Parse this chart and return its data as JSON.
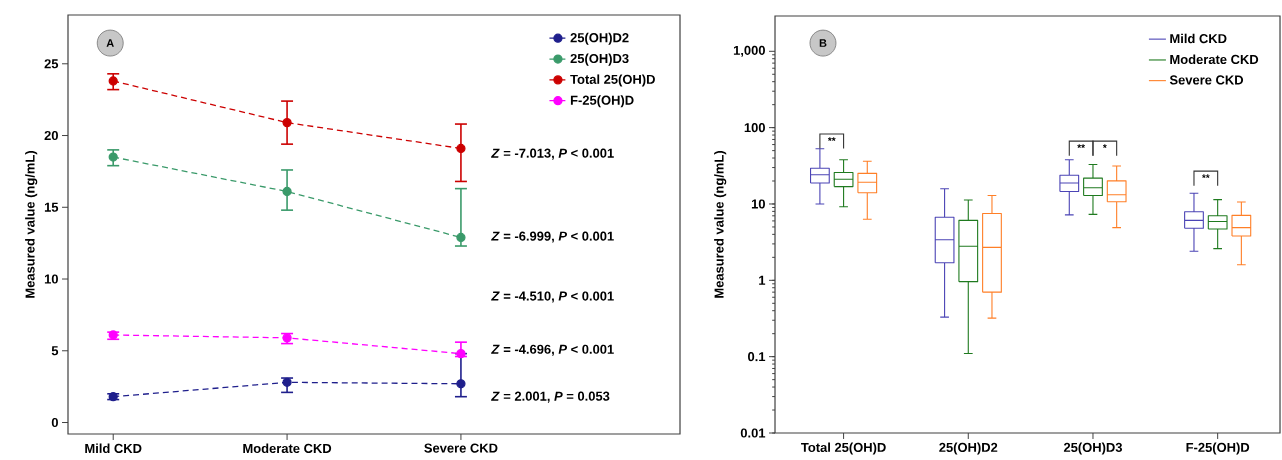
{
  "chart_data": [
    {
      "type": "line",
      "ylabel": "Measured value (ng/mL)",
      "categories": [
        "Mild CKD",
        "Moderate CKD",
        "Severe CKD"
      ],
      "ylim": [
        -0.8,
        28.4
      ],
      "yticks": [
        0,
        5,
        10,
        15,
        20,
        25
      ],
      "legend": "top right",
      "marker": "circle",
      "line_style": "dashed",
      "series": [
        {
          "name": "25(OH)D2",
          "color": "#1f1f8c",
          "values": [
            1.8,
            2.8,
            2.7
          ],
          "errors": [
            [
              1.6,
              2.0
            ],
            [
              2.1,
              3.1
            ],
            [
              1.8,
              4.8
            ]
          ]
        },
        {
          "name": "25(OH)D3",
          "color": "#3a9a6a",
          "values": [
            18.5,
            16.1,
            12.9
          ],
          "errors": [
            [
              17.9,
              19.0
            ],
            [
              14.8,
              17.6
            ],
            [
              12.3,
              16.3
            ]
          ]
        },
        {
          "name": "Total 25(OH)D",
          "color": "#cc0000",
          "values": [
            23.8,
            20.9,
            19.1
          ],
          "errors": [
            [
              23.2,
              24.3
            ],
            [
              19.4,
              22.4
            ],
            [
              16.8,
              20.8
            ]
          ]
        },
        {
          "name": "F-25(OH)D",
          "color": "#ff00ff",
          "values": [
            6.1,
            5.9,
            4.8
          ],
          "errors": [
            [
              5.8,
              6.3
            ],
            [
              5.5,
              6.2
            ],
            [
              4.6,
              5.6
            ]
          ]
        }
      ],
      "annotations": [
        "A",
        "*Z* = -7.013, *P* < 0.001",
        "*Z* = -6.999, *P* < 0.001",
        "*Z* = -4.510, *P* < 0.001",
        "*Z* = -4.696, *P* < 0.001",
        "*Z* = 2.001, *P* = 0.053"
      ]
    },
    {
      "type": "box",
      "ylabel": "Measured value (ng/mL)",
      "categories": [
        "Total 25(OH)D",
        "25(OH)D2",
        "25(OH)D3",
        "F-25(OH)D"
      ],
      "log": "y",
      "ylim": [
        0.01,
        2900
      ],
      "yticks": [
        0.01,
        0.1,
        1,
        10,
        100,
        {
          "value": 1000,
          "label": "1,000"
        }
      ],
      "legend": "top right",
      "series": [
        {
          "name": "Mild CKD",
          "color": "#4b44b5",
          "boxes": [
            {
              "low": 10.0,
              "q1": 18.8,
              "median": 24.1,
              "q3": 29.4,
              "high": 53
            },
            {
              "low": 0.33,
              "q1": 1.7,
              "median": 3.4,
              "q3": 6.7,
              "high": 15.8
            },
            {
              "low": 7.2,
              "q1": 14.6,
              "median": 18.8,
              "q3": 23.8,
              "high": 38
            },
            {
              "low": 2.4,
              "q1": 4.8,
              "median": 6.1,
              "q3": 7.9,
              "high": 13.8
            }
          ]
        },
        {
          "name": "Moderate CKD",
          "color": "#1f7a1f",
          "boxes": [
            {
              "low": 9.2,
              "q1": 16.9,
              "median": 21.1,
              "q3": 25.8,
              "high": 38
            },
            {
              "low": 0.11,
              "q1": 0.96,
              "median": 2.8,
              "q3": 6.1,
              "high": 11.3
            },
            {
              "low": 7.3,
              "q1": 12.9,
              "median": 16.3,
              "q3": 21.8,
              "high": 32.9
            },
            {
              "low": 2.6,
              "q1": 4.7,
              "median": 5.9,
              "q3": 7.0,
              "high": 11.4
            }
          ]
        },
        {
          "name": "Severe CKD",
          "color": "#ff7f27",
          "boxes": [
            {
              "low": 6.3,
              "q1": 14.0,
              "median": 19.3,
              "q3": 25.2,
              "high": 36.3
            },
            {
              "low": 0.32,
              "q1": 0.7,
              "median": 2.7,
              "q3": 7.5,
              "high": 12.9
            },
            {
              "low": 4.9,
              "q1": 10.7,
              "median": 13.2,
              "q3": 20.1,
              "high": 31.5
            },
            {
              "low": 1.6,
              "q1": 3.8,
              "median": 4.9,
              "q3": 7.1,
              "high": 10.6
            }
          ]
        }
      ],
      "annotations": [
        "B",
        "**",
        "**",
        "*",
        "**"
      ]
    }
  ]
}
